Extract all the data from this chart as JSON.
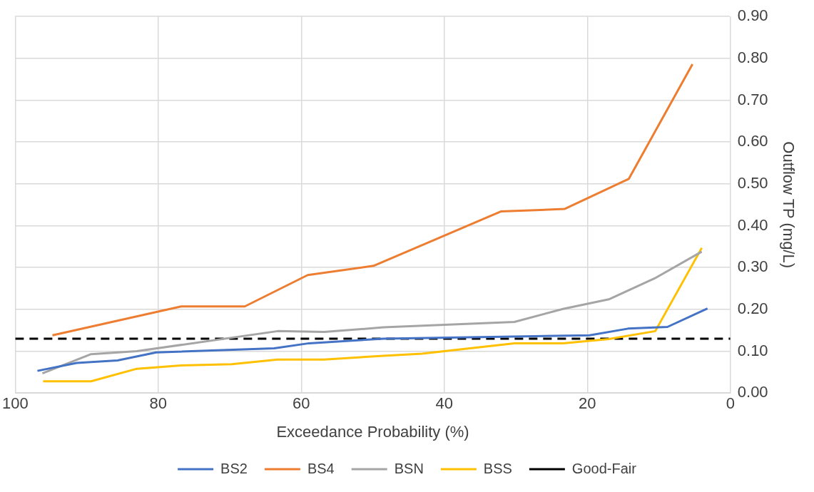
{
  "chart_data": {
    "type": "line",
    "xlabel": "Exceedance Probability (%)",
    "ylabel": "Outflow TP (mg/L)",
    "xlim": [
      100,
      0
    ],
    "xticks": [
      100,
      80,
      60,
      40,
      20,
      0
    ],
    "ylim": [
      0,
      0.9
    ],
    "yticks": [
      {
        "value": 0,
        "label": "0.00"
      },
      {
        "value": 0.1,
        "label": "0.10"
      },
      {
        "value": 0.2,
        "label": "0.20"
      },
      {
        "value": 0.3,
        "label": "0.30"
      },
      {
        "value": 0.4,
        "label": "0.40"
      },
      {
        "value": 0.5,
        "label": "0.50"
      },
      {
        "value": 0.6,
        "label": "0.60"
      },
      {
        "value": 0.7,
        "label": "0.70"
      },
      {
        "value": 0.8,
        "label": "0.80"
      },
      {
        "value": 0.9,
        "label": "0.90"
      }
    ],
    "grid": true,
    "legend": "bottom",
    "marker": "none",
    "line_style": "solid",
    "series": [
      {
        "name": "BS2",
        "color": "#4472c4",
        "x": [
          96.9,
          91.4,
          85.7,
          80.3,
          63.8,
          58.9,
          48.5,
          19.7,
          14.3,
          8.8,
          3.2
        ],
        "values": [
          0.053,
          0.072,
          0.078,
          0.097,
          0.107,
          0.119,
          0.13,
          0.138,
          0.154,
          0.158,
          0.202
        ]
      },
      {
        "name": "BS4",
        "color": "#ed7d31",
        "x": [
          94.8,
          76.8,
          67.9,
          59.1,
          49.9,
          32.1,
          23.2,
          14.2,
          5.3
        ],
        "values": [
          0.138,
          0.207,
          0.207,
          0.282,
          0.304,
          0.434,
          0.44,
          0.512,
          0.786
        ]
      },
      {
        "name": "BSN",
        "color": "#a5a5a5",
        "x": [
          96.2,
          89.4,
          83.0,
          63.3,
          56.8,
          48.5,
          30.2,
          23.4,
          17.0,
          10.6,
          4.0
        ],
        "values": [
          0.047,
          0.093,
          0.1,
          0.148,
          0.146,
          0.157,
          0.17,
          0.201,
          0.224,
          0.274,
          0.338
        ]
      },
      {
        "name": "BSS",
        "color": "#ffc000",
        "x": [
          96.1,
          89.4,
          83.0,
          76.8,
          69.7,
          63.3,
          56.8,
          48.5,
          43.1,
          30.2,
          23.4,
          17.0,
          10.5,
          4.0
        ],
        "values": [
          0.028,
          0.028,
          0.058,
          0.066,
          0.069,
          0.08,
          0.08,
          0.089,
          0.094,
          0.119,
          0.119,
          0.129,
          0.148,
          0.347
        ]
      }
    ],
    "ref_lines": [
      {
        "axis": "y",
        "value": 0.13,
        "label": "Good-Fair",
        "color": "#000000",
        "line_style": "dashed"
      }
    ]
  }
}
